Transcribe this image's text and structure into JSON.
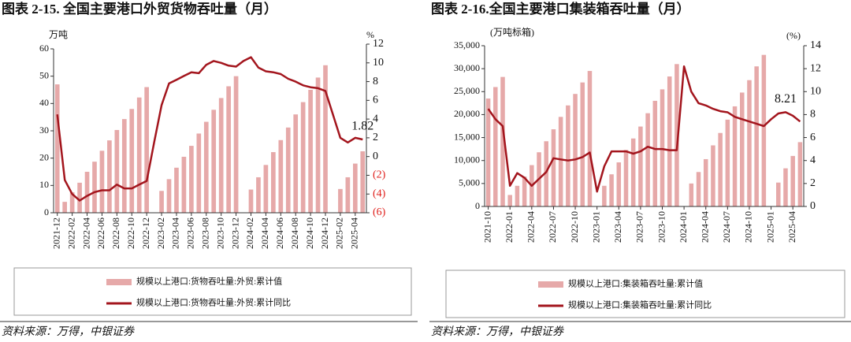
{
  "chart_data": [
    {
      "type": "bar-line",
      "title": "图表 2-15. 全国主要港口外贸货物吞吐量（月）",
      "y_label": "万吨",
      "y2_label": "%",
      "source": "资料来源：万得，中银证券",
      "categories": [
        "2021-12",
        null,
        "2022-02",
        null,
        "2022-04",
        null,
        "2022-06",
        null,
        "2022-08",
        null,
        "2022-10",
        null,
        "2022-12",
        null,
        "2023-02",
        null,
        "2023-04",
        null,
        "2023-06",
        null,
        "2023-08",
        null,
        "2023-10",
        null,
        "2023-12",
        null,
        "2024-02",
        null,
        "2024-04",
        null,
        "2024-06",
        null,
        "2024-08",
        null,
        "2024-10",
        null,
        "2024-12",
        null,
        "2025-02",
        null,
        "2025-04",
        null
      ],
      "series": [
        {
          "name": "规模以上港口:货物吞吐量:外贸:累计值",
          "type": "bar",
          "color": "#e6a9a9",
          "values": [
            47,
            4,
            7.5,
            11,
            15,
            18.7,
            22.7,
            26.5,
            30.3,
            34.3,
            38,
            42.2,
            46,
            null,
            8,
            12.3,
            16.5,
            20.5,
            24.5,
            29,
            33.3,
            37.7,
            42,
            46.3,
            50,
            null,
            8.5,
            13,
            17.5,
            22.2,
            26.6,
            31.2,
            36,
            40.5,
            45,
            49.5,
            54,
            null,
            8.7,
            13,
            18,
            22.5
          ]
        },
        {
          "name": "规模以上港口:货物吞吐量:外贸:累计同比",
          "type": "line",
          "axis": "y2",
          "color": "#a3151d",
          "values": [
            4.5,
            -2.5,
            -4,
            -4.7,
            -4.2,
            -3.8,
            -3.6,
            -3.6,
            -3,
            -3.4,
            -3.4,
            -3,
            -2.6,
            1.5,
            5.5,
            7.8,
            8.2,
            8.6,
            9,
            8.9,
            9.8,
            10.2,
            10,
            9.7,
            9.6,
            10.2,
            10.6,
            9.5,
            9.1,
            9,
            8.8,
            8.3,
            8,
            7.6,
            7.4,
            7.3,
            7,
            4.5,
            2,
            1.5,
            2,
            1.82
          ],
          "value_labels": [
            null,
            null,
            null,
            null,
            null,
            null,
            null,
            null,
            null,
            null,
            null,
            null,
            null,
            null,
            null,
            null,
            null,
            null,
            null,
            null,
            null,
            null,
            null,
            null,
            null,
            null,
            null,
            null,
            null,
            null,
            null,
            null,
            null,
            null,
            null,
            null,
            null,
            null,
            null,
            null,
            null,
            "1.82"
          ]
        }
      ],
      "ylim": [
        0,
        60
      ],
      "yticks": [
        0,
        10,
        20,
        30,
        40,
        50,
        60
      ],
      "y2lim": [
        -6,
        12
      ],
      "y2ticks": [
        {
          "value": -6,
          "label": "(6)"
        },
        {
          "value": -4,
          "label": "(4)"
        },
        {
          "value": -2,
          "label": "(2)"
        },
        0,
        2,
        4,
        6,
        8,
        10,
        12
      ],
      "negative_tick_color": "#e0201c"
    },
    {
      "type": "bar-line",
      "title": "图表 2-16.全国主要港口集装箱吞吐量（月）",
      "y_label": "(万吨标箱)",
      "y2_label": "(%)",
      "source": "资料来源：万得，中银证券",
      "categories": [
        "2021-10",
        null,
        null,
        "2022-01",
        null,
        null,
        "2022-04",
        null,
        null,
        "2022-07",
        null,
        null,
        "2022-10",
        null,
        null,
        "2023-01",
        null,
        null,
        "2023-04",
        null,
        null,
        "2023-07",
        null,
        null,
        "2023-10",
        null,
        null,
        "2024-01",
        null,
        null,
        "2024-04",
        null,
        null,
        "2024-07",
        null,
        null,
        "2024-10",
        null,
        null,
        "2025-01",
        null,
        null,
        "2025-04",
        null
      ],
      "series": [
        {
          "name": "规模以上港口:集装箱吞吐量:累计值",
          "type": "bar",
          "color": "#e6a9a9",
          "values": [
            23500,
            26000,
            28200,
            2500,
            4500,
            6500,
            9000,
            11800,
            14200,
            16800,
            19500,
            22000,
            24500,
            27000,
            29500,
            null,
            4500,
            7000,
            9600,
            12300,
            14800,
            17400,
            20300,
            23000,
            25500,
            28300,
            31000,
            null,
            5000,
            7500,
            10300,
            13300,
            16000,
            18900,
            21800,
            24800,
            27500,
            30500,
            33000,
            null,
            5200,
            8300,
            11000,
            14000
          ]
        },
        {
          "name": "规模以上港口:集装箱吞吐量:累计同比",
          "type": "line",
          "axis": "y2",
          "color": "#a3151d",
          "values": [
            8.5,
            7.6,
            7,
            1.8,
            2.9,
            2.5,
            1.8,
            2.4,
            3,
            4.2,
            4.1,
            4,
            4.1,
            4.3,
            4.7,
            1.3,
            3.5,
            4.8,
            4.8,
            4.8,
            4.6,
            4.8,
            5.2,
            5,
            5,
            4.9,
            4.9,
            12.2,
            10,
            9,
            8.8,
            8.5,
            8.3,
            8.2,
            7.8,
            7.6,
            7.4,
            7.2,
            7,
            7.6,
            8.1,
            8.21,
            7.9,
            7.4
          ],
          "value_labels": [
            null,
            null,
            null,
            null,
            null,
            null,
            null,
            null,
            null,
            null,
            null,
            null,
            null,
            null,
            null,
            null,
            null,
            null,
            null,
            null,
            null,
            null,
            null,
            null,
            null,
            null,
            null,
            null,
            null,
            null,
            null,
            null,
            null,
            null,
            null,
            null,
            null,
            null,
            null,
            null,
            null,
            "8.21",
            null,
            null
          ]
        }
      ],
      "ylim": [
        0,
        35000
      ],
      "yticks": [
        0,
        {
          "value": 5000,
          "label": "5,000"
        },
        {
          "value": 10000,
          "label": "10,000"
        },
        {
          "value": 15000,
          "label": "15,000"
        },
        {
          "value": 20000,
          "label": "20,000"
        },
        {
          "value": 25000,
          "label": "25,000"
        },
        {
          "value": 30000,
          "label": "30,000"
        },
        {
          "value": 35000,
          "label": "35,000"
        }
      ],
      "y2lim": [
        0,
        14
      ],
      "y2ticks": [
        0,
        2,
        4,
        6,
        8,
        10,
        12,
        14
      ]
    }
  ]
}
